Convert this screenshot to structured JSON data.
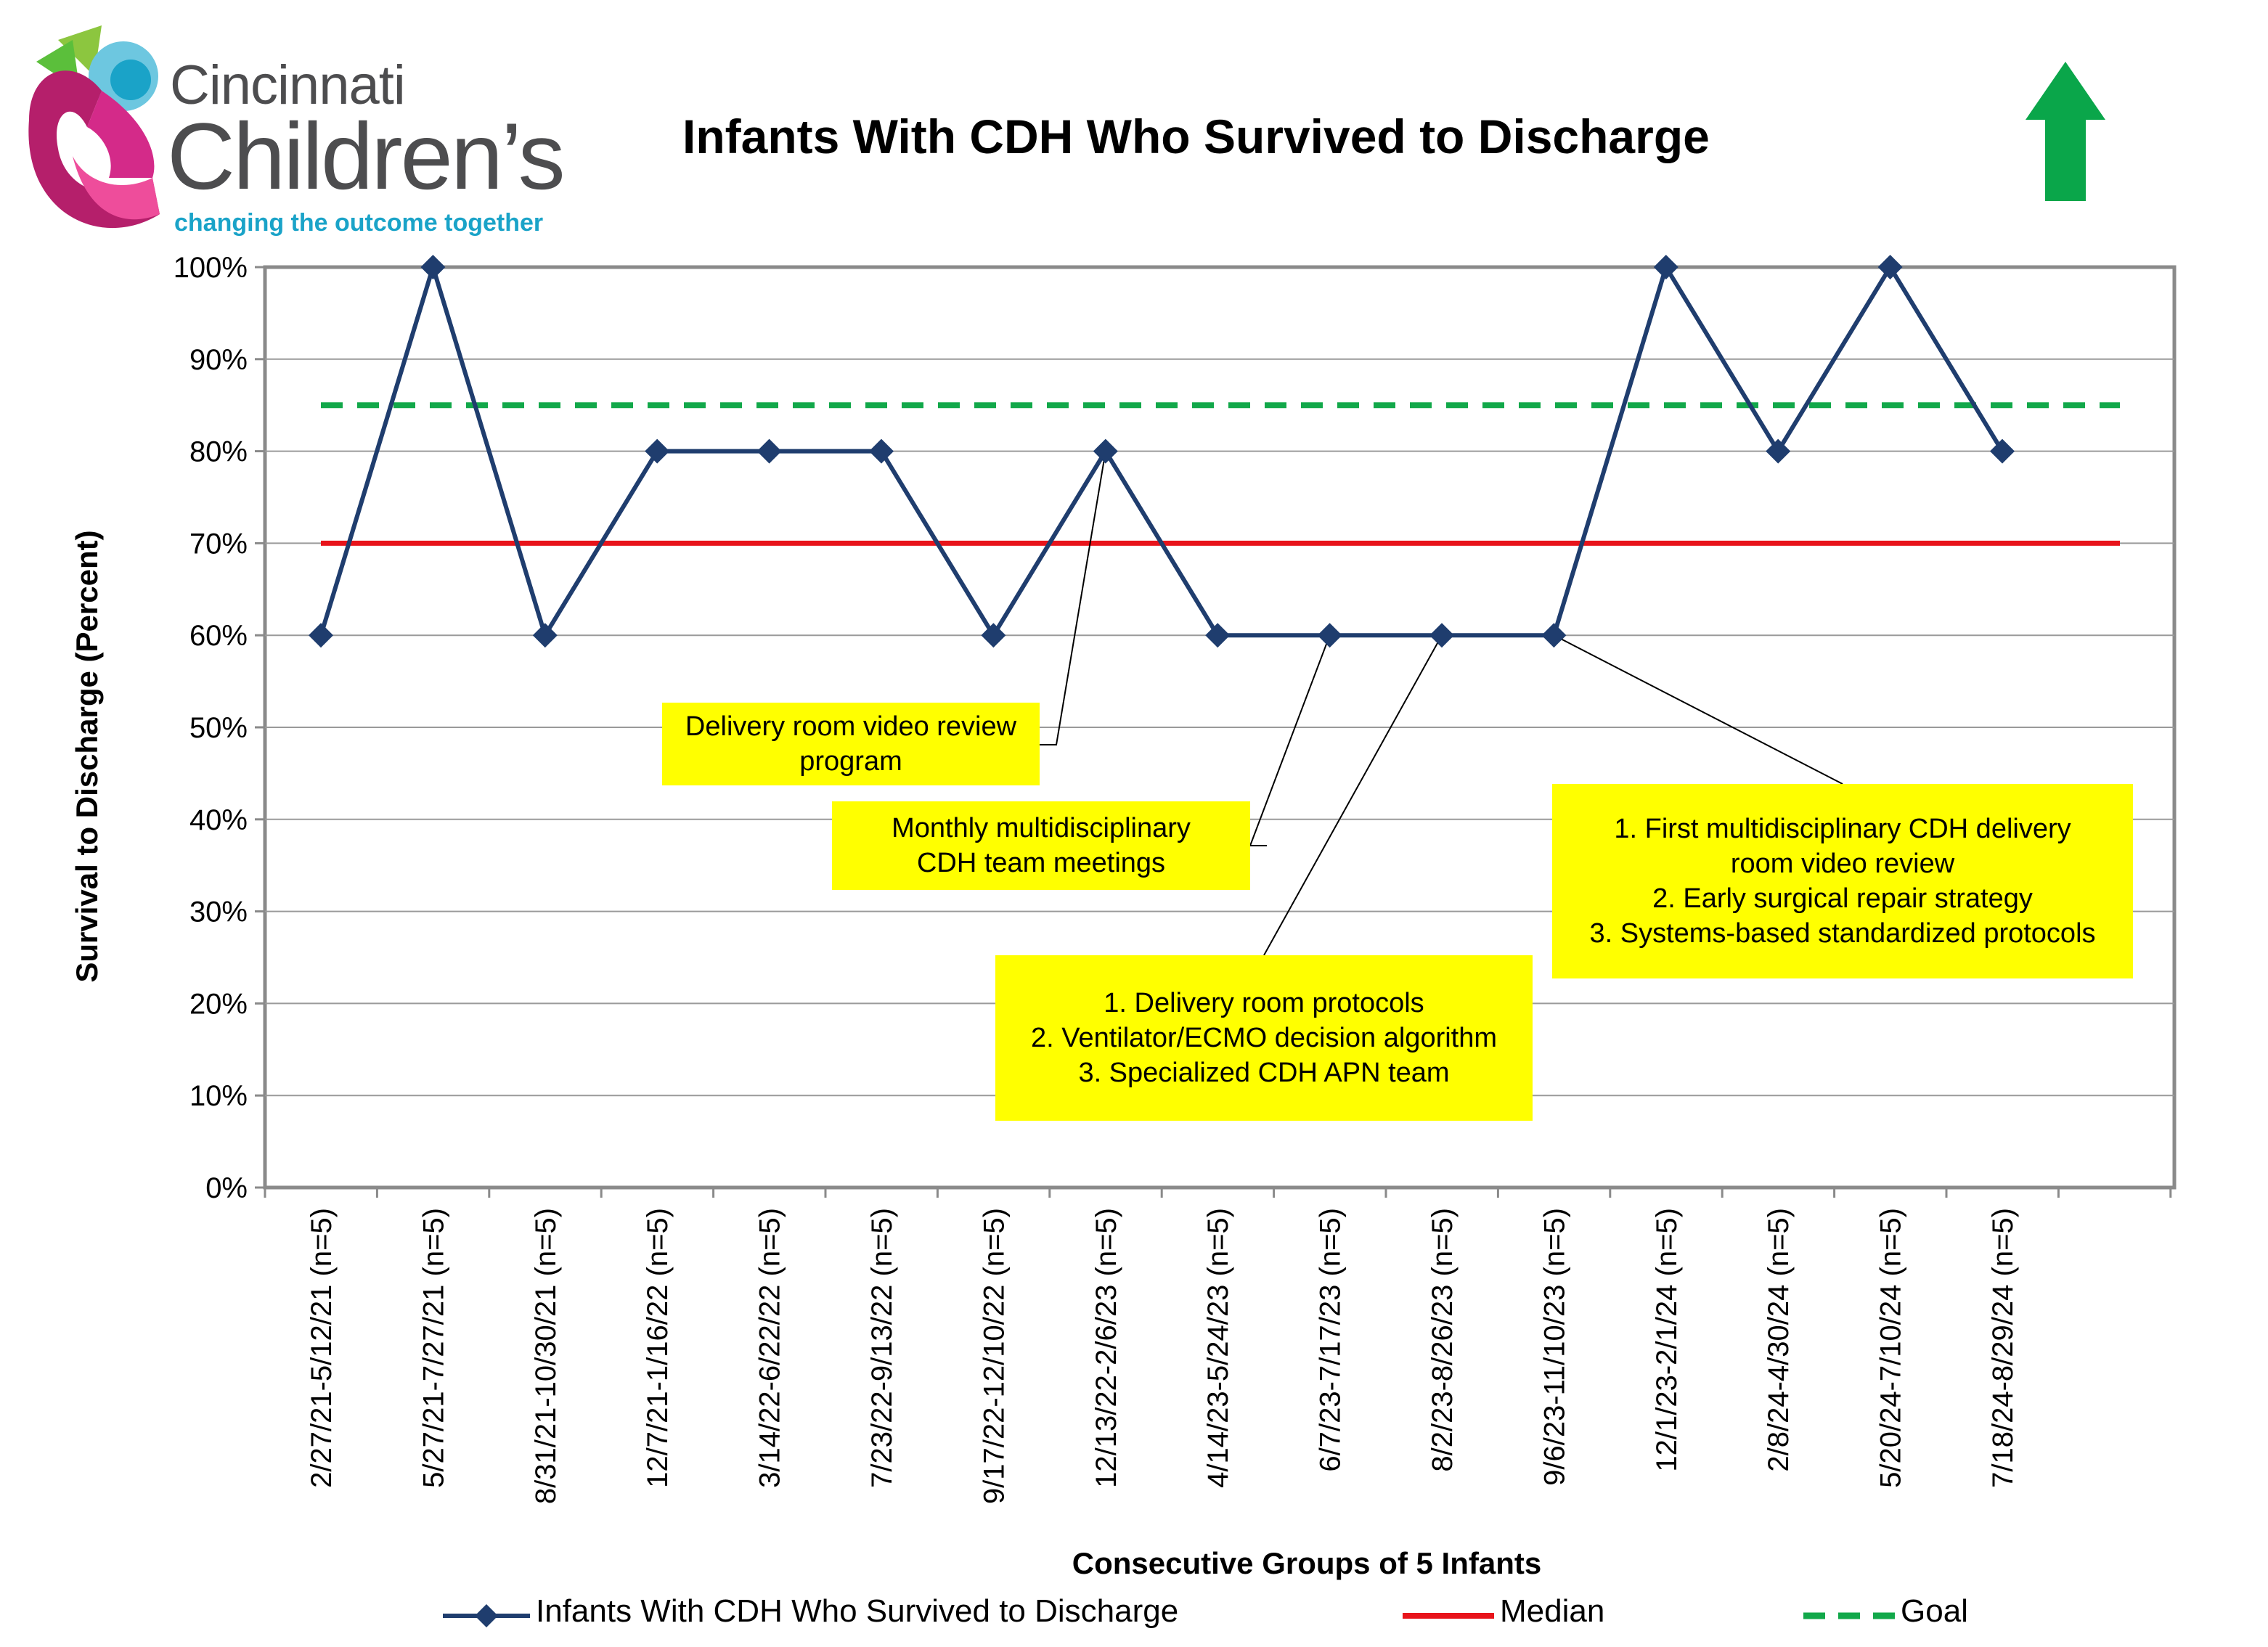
{
  "logo": {
    "line1": "Cincinnati",
    "line2": "Children’s",
    "tagline": "changing the outcome together"
  },
  "chart_data": {
    "type": "line",
    "title": "Infants With CDH Who Survived to Discharge",
    "xlabel": "Consecutive Groups of 5 Infants",
    "ylabel": "Survival to Discharge (Percent)",
    "ylim": [
      0,
      100
    ],
    "yticks": [
      "0%",
      "10%",
      "20%",
      "30%",
      "40%",
      "50%",
      "60%",
      "70%",
      "80%",
      "90%",
      "100%"
    ],
    "grid": true,
    "legend_position": "bottom",
    "categories": [
      "2/27/21-5/12/21 (n=5)",
      "5/27/21-7/27/21 (n=5)",
      "8/31/21-10/30/21 (n=5)",
      "12/7/21-1/16/22 (n=5)",
      "3/14/22-6/22/22 (n=5)",
      "7/23/22-9/13/22 (n=5)",
      "9/17/22-12/10/22 (n=5)",
      "12/13/22-2/6/23 (n=5)",
      "4/14/23-5/24/23 (n=5)",
      "6/7/23-7/17/23 (n=5)",
      "8/2/23-8/26/23 (n=5)",
      "9/6/23-11/10/23 (n=5)",
      "12/1/23-2/1/24 (n=5)",
      "2/8/24-4/30/24 (n=5)",
      "5/20/24-7/10/24 (n=5)",
      "7/18/24-8/29/24 (n=5)"
    ],
    "series": [
      {
        "name": "Infants With CDH Who Survived to Discharge",
        "color": "#1f3d6e",
        "values": [
          60,
          100,
          60,
          80,
          80,
          80,
          60,
          80,
          60,
          60,
          60,
          60,
          100,
          80,
          100,
          80
        ]
      },
      {
        "name": "Median",
        "color": "#e8141b",
        "constant": 70
      },
      {
        "name": "Goal",
        "color": "#12a84a",
        "constant": 85
      }
    ],
    "annotations": [
      {
        "text": "Delivery room video review\nprogram",
        "point_index": 7
      },
      {
        "text": "Monthly multidisciplinary\nCDH team meetings",
        "point_index": 9
      },
      {
        "text": "1. Delivery room protocols\n2. Ventilator/ECMO decision algorithm\n3. Specialized CDH APN team",
        "point_index": 10
      },
      {
        "text": "1. First multidisciplinary CDH delivery\nroom video review\n2. Early surgical repair strategy\n3. Systems-based standardized protocols",
        "point_index": 11
      }
    ],
    "goal_direction": "up",
    "arrow_color": "#0aa64a"
  }
}
